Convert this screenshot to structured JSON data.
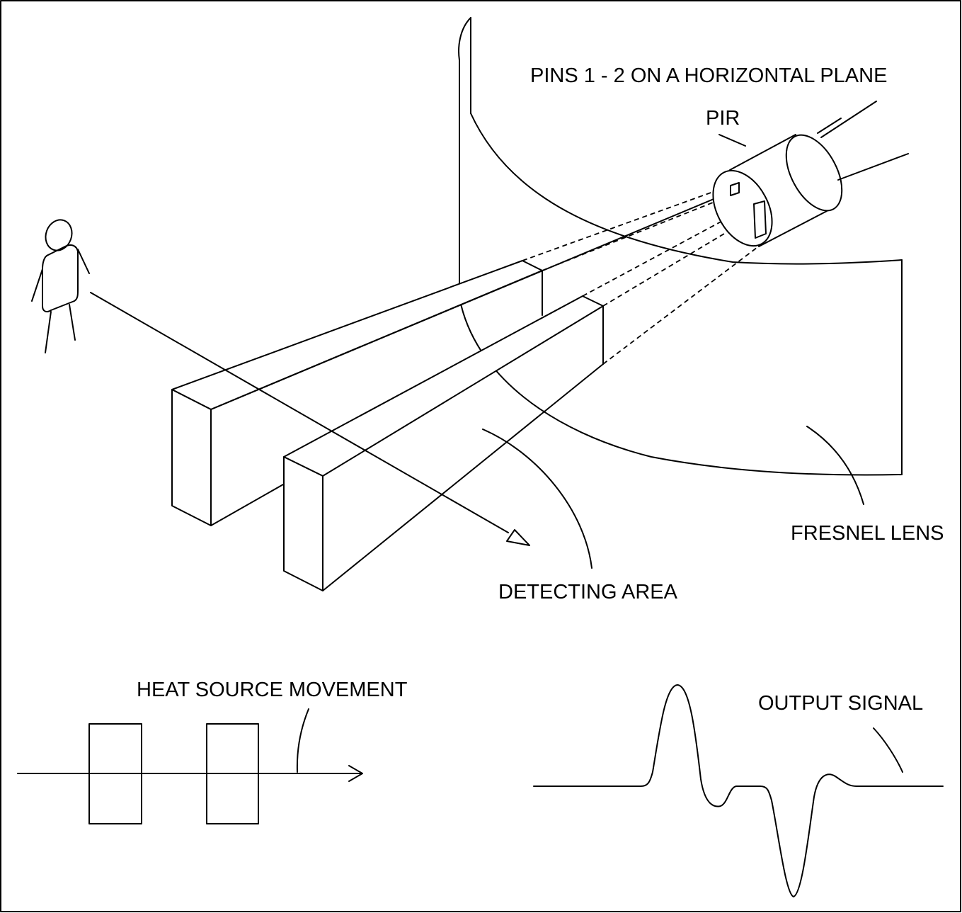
{
  "labels": {
    "pins_plane": "PINS 1 - 2 ON A HORIZONTAL PLANE",
    "pir": "PIR",
    "fresnel_lens": "FRESNEL LENS",
    "detecting_area": "DETECTING AREA",
    "heat_source_movement": "HEAT SOURCE MOVEMENT",
    "output_signal": "OUTPUT SIGNAL"
  },
  "colors": {
    "line": "#000000",
    "background": "#ffffff"
  }
}
